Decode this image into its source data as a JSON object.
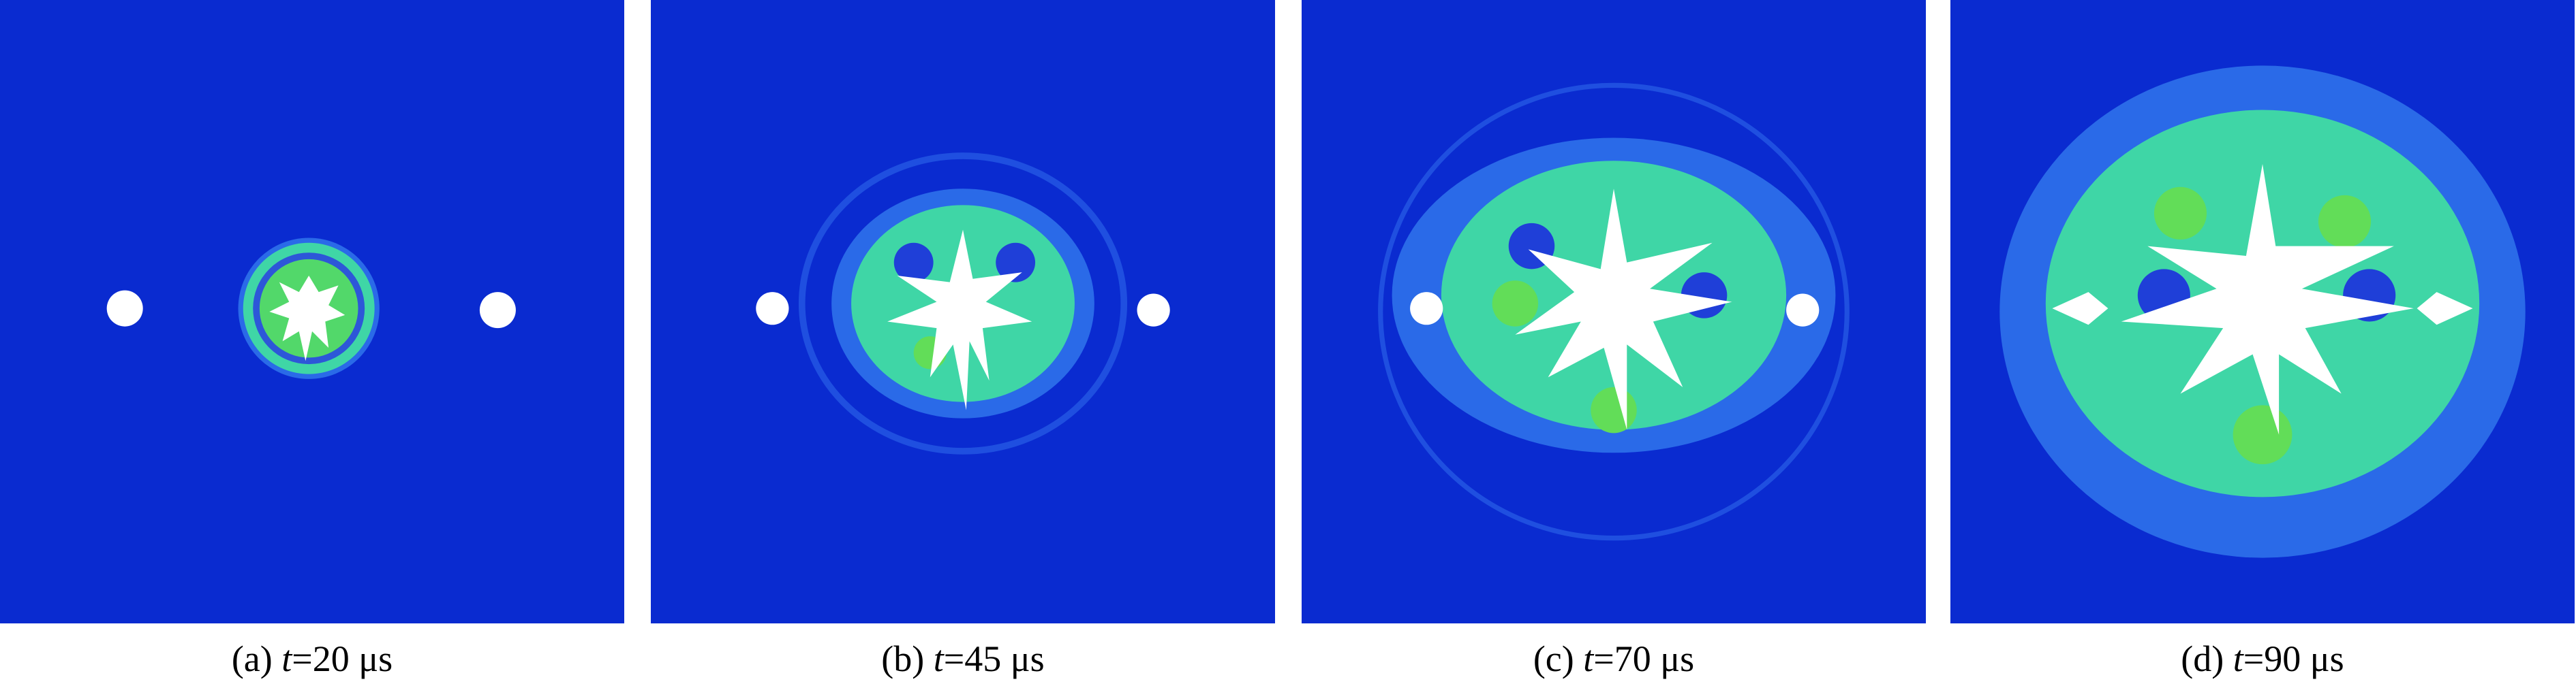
{
  "panels": [
    {
      "label": "(a)",
      "variable": "t",
      "value": "=20 μs"
    },
    {
      "label": "(b)",
      "variable": "t",
      "value": "=45 μs"
    },
    {
      "label": "(c)",
      "variable": "t",
      "value": "=70 μs"
    },
    {
      "label": "(d)",
      "variable": "t",
      "value": "=90 μs"
    }
  ]
}
